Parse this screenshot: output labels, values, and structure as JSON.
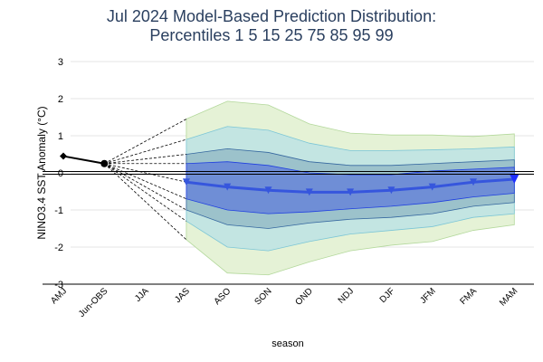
{
  "chart_data": {
    "type": "fan",
    "title": "Jul 2024 Model-Based Prediction Distribution:",
    "subtitle": "Percentiles 1 5 15 25 75 85 95 99",
    "x_label": "season",
    "y_label": "NINO3.4 SST Anomaly (°C)",
    "categories": [
      "AMJ",
      "Jun-OBS",
      "JJA",
      "JAS",
      "ASO",
      "SON",
      "OND",
      "NDJ",
      "DJF",
      "JFM",
      "FMA",
      "MAM"
    ],
    "ylim": [
      -3,
      3
    ],
    "yticks": [
      -3,
      -2,
      -1,
      0,
      1,
      2,
      3
    ],
    "grid": true,
    "observed": {
      "color": "#000000",
      "values": [
        0.45,
        0.25,
        null,
        null,
        null,
        null,
        null,
        null,
        null,
        null,
        null,
        null
      ]
    },
    "bands": [
      {
        "color": "#e5f2d6",
        "line_color": "#b3d89b",
        "upper": [
          null,
          null,
          null,
          1.45,
          1.93,
          1.83,
          1.32,
          1.07,
          1.02,
          1.02,
          0.98,
          1.05
        ],
        "lower": [
          null,
          null,
          null,
          -1.8,
          -2.7,
          -2.75,
          -2.4,
          -2.1,
          -1.95,
          -1.85,
          -1.55,
          -1.4
        ]
      },
      {
        "color": "#c3e5e2",
        "line_color": "#7cc6d6",
        "upper": [
          null,
          null,
          null,
          0.9,
          1.25,
          1.15,
          0.8,
          0.6,
          0.6,
          0.62,
          0.65,
          0.7
        ],
        "lower": [
          null,
          null,
          null,
          -1.3,
          -2.0,
          -2.1,
          -1.85,
          -1.65,
          -1.55,
          -1.45,
          -1.2,
          -1.1
        ]
      },
      {
        "color": "#9cc2cb",
        "line_color": "#35679f",
        "upper": [
          null,
          null,
          null,
          0.5,
          0.65,
          0.55,
          0.3,
          0.2,
          0.2,
          0.25,
          0.3,
          0.35
        ],
        "lower": [
          null,
          null,
          null,
          -1.0,
          -1.4,
          -1.5,
          -1.35,
          -1.25,
          -1.2,
          -1.1,
          -0.9,
          -0.8
        ]
      },
      {
        "color": "#6f8ed6",
        "line_color": "#1f3fe0",
        "upper": [
          null,
          null,
          null,
          0.25,
          0.3,
          0.2,
          0.0,
          -0.05,
          -0.05,
          0.05,
          0.1,
          0.15
        ],
        "lower": [
          null,
          null,
          null,
          -0.7,
          -1.0,
          -1.1,
          -1.05,
          -0.97,
          -0.9,
          -0.8,
          -0.65,
          -0.55
        ]
      }
    ],
    "median": {
      "color": "#3656dd",
      "values": [
        null,
        null,
        null,
        -0.25,
        -0.38,
        -0.47,
        -0.52,
        -0.52,
        -0.47,
        -0.38,
        -0.25,
        -0.17
      ]
    }
  }
}
